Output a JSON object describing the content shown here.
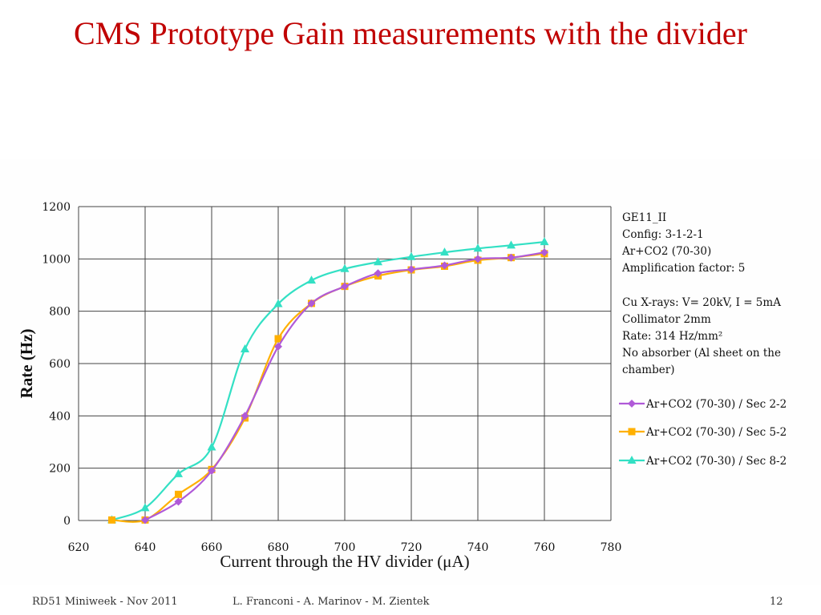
{
  "slide": {
    "title": "CMS Prototype Gain measurements with the divider"
  },
  "footer": {
    "event": "RD51 Miniweek - Nov 2011",
    "authors": "L. Franconi - A. Marinov - M. Zientek",
    "page": "12"
  },
  "chart_data": {
    "type": "line",
    "xlabel": "Current through the HV divider (μA)",
    "ylabel": "Rate (Hz)",
    "xlim": [
      620,
      780
    ],
    "ylim": [
      0,
      1200
    ],
    "xticks": [
      620,
      640,
      660,
      680,
      700,
      720,
      740,
      760,
      780
    ],
    "yticks": [
      0,
      200,
      400,
      600,
      800,
      1000,
      1200
    ],
    "grid": true,
    "legend_position": "right",
    "annotations": [
      "GE11_II",
      "Config: 3-1-2-1",
      "Ar+CO2 (70-30)",
      "Amplification factor: 5",
      "Cu X-rays:   V= 20kV, I = 5mA",
      "Collimator 2mm",
      "Rate: 314 Hz/mm²",
      "No absorber (Al sheet on the",
      "chamber)"
    ],
    "series": [
      {
        "name": "Ar+CO2 (70-30) / Sec 2-2",
        "color": "#b05ad8",
        "marker": "diamond",
        "x": [
          640,
          650,
          660,
          670,
          680,
          690,
          700,
          710,
          720,
          730,
          740,
          750,
          760
        ],
        "y": [
          2,
          72,
          190,
          400,
          665,
          830,
          895,
          945,
          960,
          975,
          1000,
          1005,
          1025
        ]
      },
      {
        "name": "Ar+CO2 (70-30) / Sec 5-2",
        "color": "#ffb000",
        "marker": "square",
        "x": [
          630,
          640,
          650,
          660,
          670,
          680,
          690,
          700,
          710,
          720,
          730,
          740,
          750,
          760
        ],
        "y": [
          2,
          2,
          100,
          195,
          392,
          695,
          830,
          895,
          935,
          958,
          972,
          995,
          1005,
          1020
        ]
      },
      {
        "name": "Ar+CO2 (70-30) / Sec 8-2",
        "color": "#33e0c4",
        "marker": "triangle",
        "x": [
          630,
          640,
          650,
          660,
          670,
          680,
          690,
          700,
          710,
          720,
          730,
          740,
          750,
          760
        ],
        "y": [
          2,
          48,
          178,
          280,
          655,
          828,
          918,
          962,
          988,
          1008,
          1025,
          1040,
          1052,
          1065
        ]
      }
    ]
  }
}
